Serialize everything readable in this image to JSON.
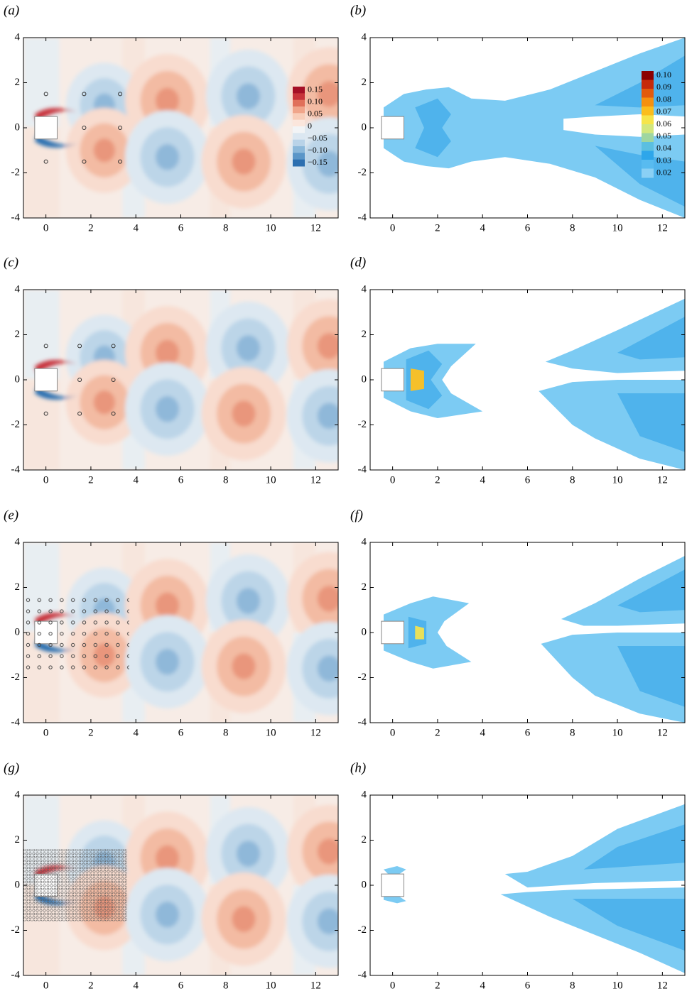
{
  "chart_data": [
    {
      "type": "vorticity",
      "label": "(a)",
      "xlim": [
        -1,
        13
      ],
      "ylim": [
        -4,
        4
      ],
      "xticks": [
        0,
        2,
        4,
        6,
        8,
        10,
        12
      ],
      "yticks": [
        -4,
        -2,
        0,
        2,
        4
      ],
      "markers": {
        "x": [
          0,
          1.7,
          3.3,
          1.7,
          3.3,
          0,
          1.7,
          3.3
        ],
        "y": [
          1.5,
          1.5,
          1.5,
          0,
          0,
          -1.5,
          -1.5,
          -1.5
        ]
      },
      "colorbar": {
        "ticks": [
          0.15,
          {
            "value": 0.1,
            "label": "0.10"
          },
          0.05,
          0,
          {
            "value": -0.05,
            "label": "−0.05"
          },
          {
            "value": -0.1,
            "label": "−0.10"
          },
          {
            "value": -0.15,
            "label": "−0.15"
          }
        ],
        "colors": [
          "#a50f26",
          "#c8333a",
          "#e0705a",
          "#f0a58a",
          "#f8cdb8",
          "#fbe6dc",
          "#f2f4f6",
          "#dbe7f1",
          "#b9d3e8",
          "#8bb8da",
          "#5a96c8",
          "#2c6fb0"
        ]
      }
    },
    {
      "type": "error",
      "label": "(b)",
      "xlim": [
        -1,
        13
      ],
      "ylim": [
        -4,
        4
      ],
      "xticks": [
        0,
        2,
        4,
        6,
        8,
        10,
        12
      ],
      "yticks": [
        -4,
        -2,
        0,
        2,
        4
      ],
      "colorbar": {
        "ticks": [
          {
            "value": 0.1,
            "label": "0.10"
          },
          0.09,
          0.08,
          0.07,
          0.06,
          0.05,
          0.04,
          0.03,
          0.02
        ],
        "colors": [
          "#8b0000",
          "#c62a0a",
          "#e25a0c",
          "#f5900f",
          "#fbbd1c",
          "#f6e54a",
          "#d3e77c",
          "#9fd6a0",
          "#5bbfe0",
          "#2ea6ea",
          "#58bbf0",
          "#8ad0f5"
        ]
      }
    },
    {
      "type": "vorticity",
      "label": "(c)",
      "xlim": [
        -1,
        13
      ],
      "ylim": [
        -4,
        4
      ],
      "xticks": [
        0,
        2,
        4,
        6,
        8,
        10,
        12
      ],
      "yticks": [
        -4,
        -2,
        0,
        2,
        4
      ],
      "markers": {
        "x": [
          0,
          1.5,
          3,
          1.5,
          3,
          0,
          1.5,
          3
        ],
        "y": [
          1.5,
          1.5,
          1.5,
          0,
          0,
          -1.5,
          -1.5,
          -1.5
        ]
      }
    },
    {
      "type": "error",
      "label": "(d)",
      "xlim": [
        -1,
        13
      ],
      "ylim": [
        -4,
        4
      ],
      "xticks": [
        0,
        2,
        4,
        6,
        8,
        10,
        12
      ],
      "yticks": [
        -4,
        -2,
        0,
        2,
        4
      ]
    },
    {
      "type": "vorticity",
      "label": "(e)",
      "xlim": [
        -1,
        13
      ],
      "ylim": [
        -4,
        4
      ],
      "xticks": [
        0,
        2,
        4,
        6,
        8,
        10,
        12
      ],
      "yticks": [
        -4,
        -2,
        0,
        2,
        4
      ]
    },
    {
      "type": "error",
      "label": "(f)",
      "xlim": [
        -1,
        13
      ],
      "ylim": [
        -4,
        4
      ],
      "xticks": [
        0,
        2,
        4,
        6,
        8,
        10,
        12
      ],
      "yticks": [
        -4,
        -2,
        0,
        2,
        4
      ]
    },
    {
      "type": "vorticity",
      "label": "(g)",
      "xlim": [
        -1,
        13
      ],
      "ylim": [
        -4,
        4
      ],
      "xticks": [
        0,
        2,
        4,
        6,
        8,
        10,
        12
      ],
      "yticks": [
        -4,
        -2,
        0,
        2,
        4
      ]
    },
    {
      "type": "error",
      "label": "(h)",
      "xlim": [
        -1,
        13
      ],
      "ylim": [
        -4,
        4
      ],
      "xticks": [
        0,
        2,
        4,
        6,
        8,
        10,
        12
      ],
      "yticks": [
        -4,
        -2,
        0,
        2,
        4
      ]
    }
  ]
}
